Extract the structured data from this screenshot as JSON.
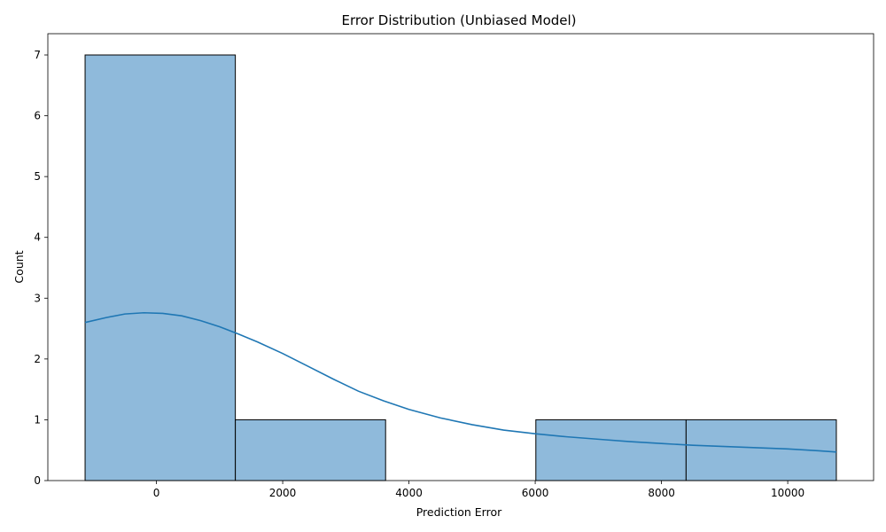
{
  "chart_data": {
    "type": "histogram",
    "title": "Error Distribution (Unbiased Model)",
    "xlabel": "Prediction Error",
    "ylabel": "Count",
    "bins": [
      {
        "x0": -1130,
        "x1": 1250,
        "count": 7
      },
      {
        "x0": 1250,
        "x1": 3630,
        "count": 1
      },
      {
        "x0": 3630,
        "x1": 6010,
        "count": 0
      },
      {
        "x0": 6010,
        "x1": 8390,
        "count": 1
      },
      {
        "x0": 8390,
        "x1": 10770,
        "count": 1
      }
    ],
    "kde": {
      "x": [
        -1130,
        -800,
        -500,
        -200,
        100,
        400,
        700,
        1000,
        1300,
        1600,
        2000,
        2400,
        2800,
        3200,
        3600,
        4000,
        4500,
        5000,
        5500,
        6000,
        6500,
        7000,
        7500,
        8000,
        8500,
        9000,
        9500,
        10000,
        10500,
        10770
      ],
      "y": [
        2.6,
        2.68,
        2.74,
        2.76,
        2.75,
        2.71,
        2.63,
        2.53,
        2.41,
        2.28,
        2.09,
        1.88,
        1.67,
        1.47,
        1.31,
        1.17,
        1.03,
        0.92,
        0.83,
        0.77,
        0.72,
        0.68,
        0.64,
        0.61,
        0.58,
        0.56,
        0.54,
        0.52,
        0.49,
        0.47
      ]
    },
    "xlim": [
      -1720,
      11360
    ],
    "ylim": [
      0,
      7.35
    ],
    "xticks": [
      0,
      2000,
      4000,
      6000,
      8000,
      10000
    ],
    "yticks": [
      0,
      1,
      2,
      3,
      4,
      5,
      6,
      7
    ],
    "colors": {
      "bar_fill": "#8fbadb",
      "bar_edge": "#000000",
      "kde_line": "#1f77b4"
    },
    "grid": false
  }
}
